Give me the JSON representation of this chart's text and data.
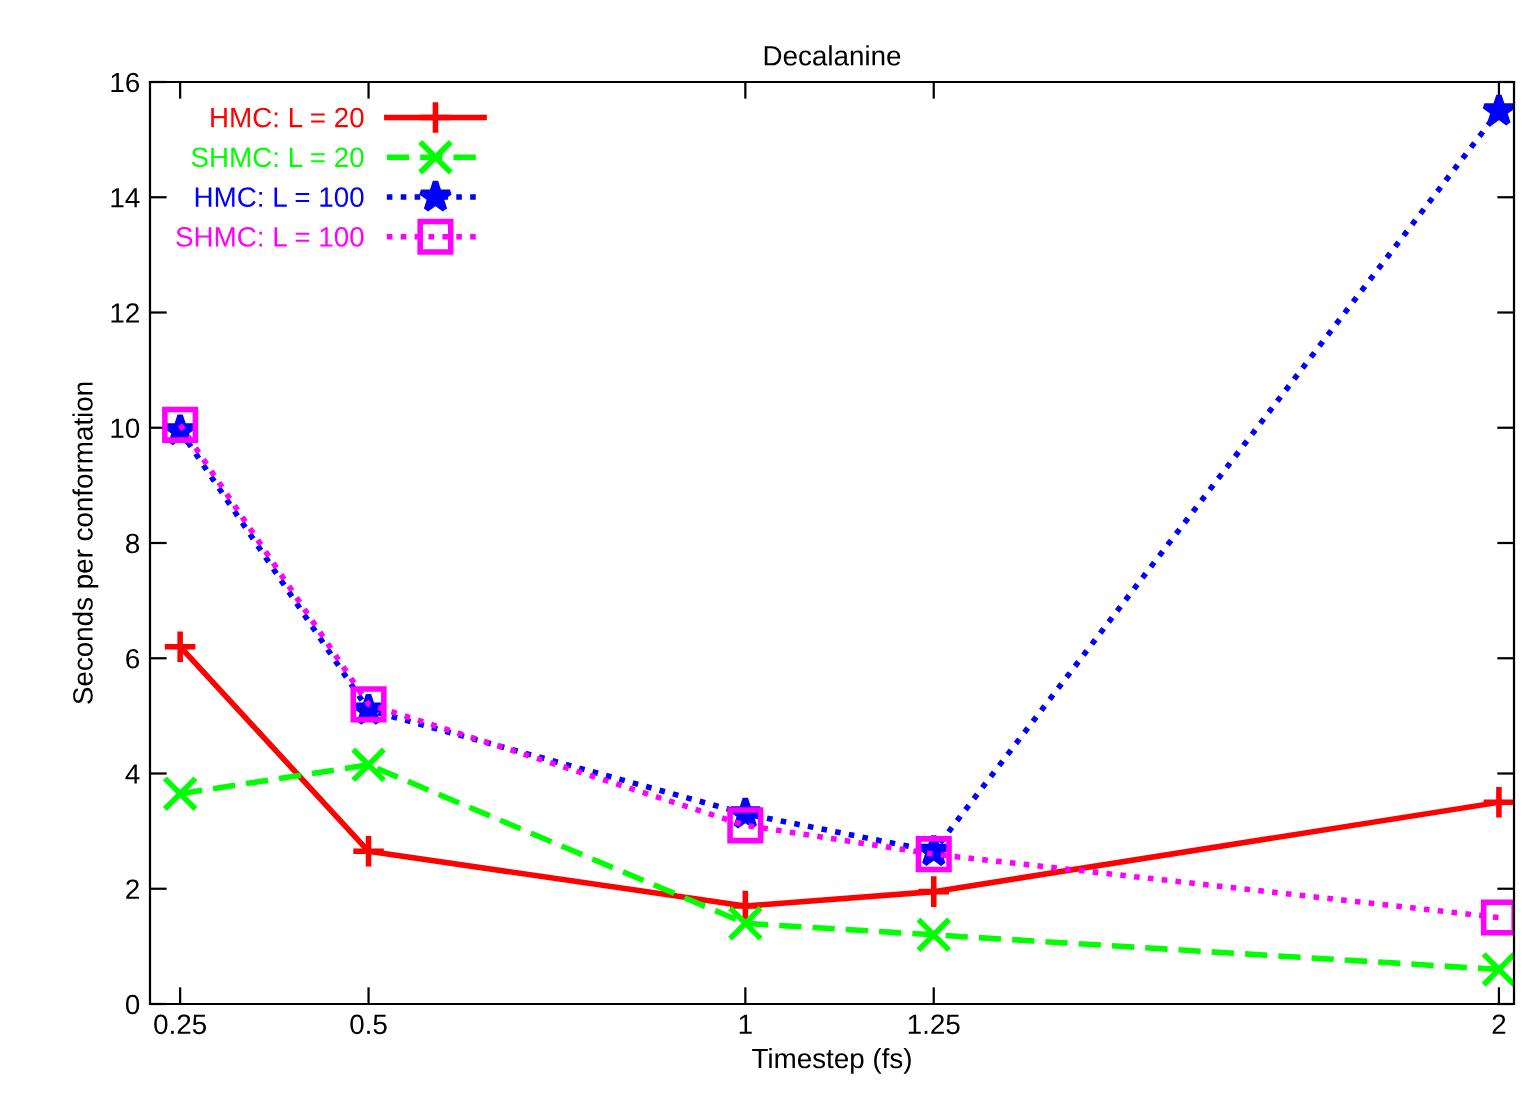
{
  "chart_data": {
    "type": "line",
    "title": "Decalanine",
    "xlabel": "Timestep (fs)",
    "ylabel": "Seconds per conformation",
    "x": [
      0.25,
      0.5,
      1,
      1.25,
      2
    ],
    "series": [
      {
        "name": "HMC: L = 20",
        "color": "#ff0000",
        "marker": "plus",
        "line_style": "solid",
        "values": [
          6.2,
          2.65,
          1.7,
          1.95,
          3.5
        ]
      },
      {
        "name": "SHMC: L = 20",
        "color": "#00ff00",
        "marker": "cross",
        "line_style": "dashed",
        "values": [
          3.65,
          4.15,
          1.4,
          1.2,
          0.6
        ]
      },
      {
        "name": "HMC: L = 100",
        "color": "#0000ff",
        "marker": "star",
        "line_style": "dotted",
        "values": [
          9.95,
          5.1,
          3.3,
          2.65,
          15.5
        ]
      },
      {
        "name": "SHMC: L = 100",
        "color": "#ff00ff",
        "marker": "square",
        "line_style": "dotted",
        "values": [
          10.05,
          5.2,
          3.1,
          2.6,
          1.5
        ]
      }
    ],
    "xlim": [
      0.21,
      2.02
    ],
    "xticks": [
      0.25,
      0.5,
      1,
      1.25,
      2
    ],
    "ylim": [
      0,
      16
    ],
    "yticks": [
      0,
      2,
      4,
      6,
      8,
      10,
      12,
      14,
      16
    ],
    "grid": false,
    "legend": "top left"
  }
}
